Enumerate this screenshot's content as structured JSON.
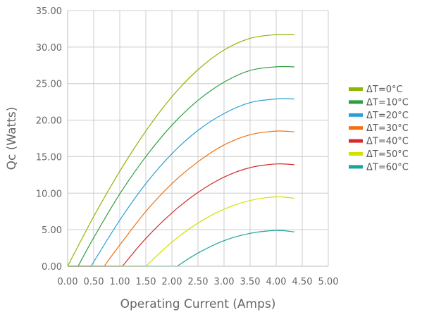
{
  "chart_data": {
    "type": "line",
    "title": "",
    "xlabel": "Operating Current (Amps)",
    "ylabel": "Qc (Watts)",
    "xlim": [
      0,
      5
    ],
    "ylim": [
      0,
      35
    ],
    "x_ticks": [
      "0.00",
      "0.50",
      "1.00",
      "1.50",
      "2.00",
      "2.50",
      "3.00",
      "3.50",
      "4.00",
      "4.50",
      "5.00"
    ],
    "y_ticks": [
      "0.00",
      "5.00",
      "10.00",
      "15.00",
      "20.00",
      "25.00",
      "30.00",
      "35.00"
    ],
    "grid": true,
    "legend_position": "right",
    "series": [
      {
        "name": "ΔT=0°C",
        "color": "#8db600",
        "x": [
          0.0,
          0.5,
          1.0,
          1.5,
          2.0,
          2.5,
          3.0,
          3.5,
          4.0,
          4.35
        ],
        "values": [
          0.0,
          6.8,
          13.0,
          18.5,
          23.2,
          26.9,
          29.6,
          31.2,
          31.7,
          31.7
        ]
      },
      {
        "name": "ΔT=10°C",
        "color": "#2e9e3f",
        "x": [
          0.2,
          0.5,
          1.0,
          1.5,
          2.0,
          2.5,
          3.0,
          3.5,
          4.0,
          4.35
        ],
        "values": [
          0.0,
          3.9,
          9.9,
          15.0,
          19.3,
          22.7,
          25.2,
          26.8,
          27.3,
          27.3
        ]
      },
      {
        "name": "ΔT=20°C",
        "color": "#2a9fd6",
        "x": [
          0.45,
          0.5,
          1.0,
          1.5,
          2.0,
          2.5,
          3.0,
          3.5,
          4.0,
          4.35
        ],
        "values": [
          0.0,
          0.6,
          6.3,
          11.3,
          15.4,
          18.6,
          20.9,
          22.4,
          22.9,
          22.9
        ]
      },
      {
        "name": "ΔT=30°C",
        "color": "#f07010",
        "x": [
          0.7,
          1.0,
          1.5,
          2.0,
          2.5,
          3.0,
          3.5,
          4.0,
          4.35
        ],
        "values": [
          0.0,
          2.9,
          7.5,
          11.3,
          14.3,
          16.6,
          18.0,
          18.5,
          18.4
        ]
      },
      {
        "name": "ΔT=40°C",
        "color": "#d42a2a",
        "x": [
          1.05,
          1.5,
          2.0,
          2.5,
          3.0,
          3.5,
          4.0,
          4.35
        ],
        "values": [
          0.0,
          3.8,
          7.3,
          10.1,
          12.2,
          13.5,
          14.0,
          13.9
        ]
      },
      {
        "name": "ΔT=50°C",
        "color": "#d6e000",
        "x": [
          1.5,
          2.0,
          2.5,
          3.0,
          3.5,
          4.0,
          4.35
        ],
        "values": [
          0.0,
          3.3,
          5.9,
          7.8,
          9.0,
          9.5,
          9.3
        ]
      },
      {
        "name": "ΔT=60°C",
        "color": "#1aa59a",
        "x": [
          2.1,
          2.5,
          3.0,
          3.5,
          4.0,
          4.35
        ],
        "values": [
          0.0,
          1.8,
          3.5,
          4.5,
          4.9,
          4.7
        ]
      }
    ]
  }
}
